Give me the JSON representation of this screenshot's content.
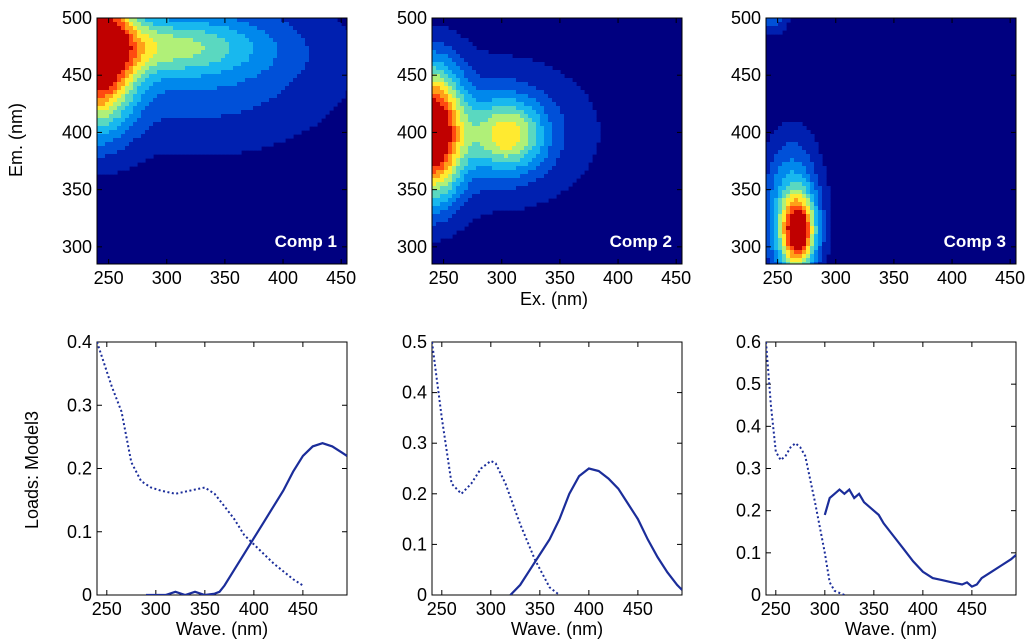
{
  "figure": {
    "shared_ylabel_top": "Em. (nm)",
    "shared_xlabel_top": "Ex. (nm)",
    "shared_ylabel_bottom": "Loads: Model3"
  },
  "colors": {
    "background_fill": "#000080",
    "line": "#1b2d9a",
    "colormap": [
      "#000080",
      "#0020b0",
      "#0050d8",
      "#0088ec",
      "#18b8ee",
      "#5ad8c0",
      "#b0f078",
      "#ffea30",
      "#ffa018",
      "#ff4a10",
      "#c00000"
    ]
  },
  "chart_data": [
    {
      "type": "heatmap",
      "subtype": "contour",
      "label": "Comp 1",
      "xlim": [
        240,
        455
      ],
      "ylim": [
        285,
        500
      ],
      "xticks": [
        250,
        300,
        350,
        400,
        450
      ],
      "yticks": [
        300,
        350,
        400,
        450,
        500
      ],
      "ylabel": "Em. (nm)",
      "peaks": [
        {
          "x": 240,
          "y": 470,
          "sx": 22,
          "sy": 45,
          "amp": 1.0
        },
        {
          "x": 300,
          "y": 475,
          "sx": 55,
          "sy": 18,
          "amp": 0.35
        },
        {
          "x": 330,
          "y": 460,
          "sx": 90,
          "sy": 55,
          "amp": 0.26
        }
      ]
    },
    {
      "type": "heatmap",
      "subtype": "contour",
      "label": "Comp 2",
      "xlim": [
        240,
        455
      ],
      "ylim": [
        285,
        500
      ],
      "xticks": [
        250,
        300,
        350,
        400,
        450
      ],
      "yticks": [
        300,
        350,
        400,
        450,
        500
      ],
      "xlabel": "Ex. (nm)",
      "peaks": [
        {
          "x": 240,
          "y": 400,
          "sx": 18,
          "sy": 40,
          "amp": 1.0
        },
        {
          "x": 305,
          "y": 398,
          "sx": 22,
          "sy": 22,
          "amp": 0.5
        },
        {
          "x": 290,
          "y": 400,
          "sx": 70,
          "sy": 50,
          "amp": 0.22
        }
      ]
    },
    {
      "type": "heatmap",
      "subtype": "contour",
      "label": "Comp 3",
      "xlim": [
        240,
        455
      ],
      "ylim": [
        285,
        500
      ],
      "xticks": [
        250,
        300,
        350,
        400,
        450
      ],
      "yticks": [
        300,
        350,
        400,
        450,
        500
      ],
      "peaks": [
        {
          "x": 268,
          "y": 312,
          "sx": 10,
          "sy": 22,
          "amp": 0.75
        },
        {
          "x": 262,
          "y": 330,
          "sx": 18,
          "sy": 45,
          "amp": 0.45
        },
        {
          "x": 245,
          "y": 500,
          "sx": 10,
          "sy": 10,
          "amp": 0.25
        }
      ]
    },
    {
      "type": "line",
      "xlabel": "Wave. (nm)",
      "ylabel": "Loads: Model3",
      "xlim": [
        240,
        495
      ],
      "ylim": [
        0,
        0.4
      ],
      "xticks": [
        250,
        300,
        350,
        400,
        450
      ],
      "yticks": [
        0,
        0.1,
        0.2,
        0.3,
        0.4
      ],
      "ytick_labels": [
        "0",
        "0.1",
        "0.2",
        "0.3",
        "0.4"
      ],
      "series": [
        {
          "style": "dotted",
          "x": [
            240,
            255,
            265,
            275,
            285,
            295,
            305,
            320,
            335,
            350,
            360,
            370,
            380,
            390,
            400,
            420,
            440,
            450
          ],
          "values": [
            0.4,
            0.33,
            0.29,
            0.21,
            0.18,
            0.17,
            0.165,
            0.16,
            0.165,
            0.17,
            0.16,
            0.14,
            0.12,
            0.095,
            0.08,
            0.05,
            0.025,
            0.015
          ]
        },
        {
          "style": "solid",
          "x": [
            290,
            310,
            320,
            330,
            340,
            350,
            360,
            365,
            370,
            380,
            390,
            400,
            410,
            420,
            430,
            440,
            450,
            460,
            470,
            480,
            490,
            495
          ],
          "values": [
            0,
            0,
            0.005,
            0,
            0.005,
            0,
            0.002,
            0.005,
            0.015,
            0.04,
            0.065,
            0.09,
            0.115,
            0.14,
            0.165,
            0.195,
            0.22,
            0.235,
            0.24,
            0.235,
            0.225,
            0.22
          ]
        }
      ]
    },
    {
      "type": "line",
      "xlabel": "Wave. (nm)",
      "xlim": [
        240,
        495
      ],
      "ylim": [
        0,
        0.5
      ],
      "xticks": [
        250,
        300,
        350,
        400,
        450
      ],
      "yticks": [
        0,
        0.1,
        0.2,
        0.3,
        0.4,
        0.5
      ],
      "ytick_labels": [
        "0",
        "0.1",
        "0.2",
        "0.3",
        "0.4",
        "0.5"
      ],
      "series": [
        {
          "style": "dotted",
          "x": [
            240,
            250,
            260,
            270,
            280,
            290,
            300,
            305,
            315,
            330,
            345,
            360,
            370
          ],
          "values": [
            0.5,
            0.35,
            0.22,
            0.2,
            0.22,
            0.25,
            0.265,
            0.26,
            0.22,
            0.14,
            0.07,
            0.015,
            0
          ]
        },
        {
          "style": "solid",
          "x": [
            320,
            330,
            340,
            350,
            360,
            370,
            380,
            390,
            400,
            410,
            420,
            430,
            440,
            450,
            460,
            470,
            480,
            490,
            495
          ],
          "values": [
            0,
            0.02,
            0.05,
            0.08,
            0.11,
            0.15,
            0.2,
            0.235,
            0.25,
            0.245,
            0.23,
            0.21,
            0.18,
            0.15,
            0.11,
            0.075,
            0.045,
            0.02,
            0.01
          ]
        }
      ]
    },
    {
      "type": "line",
      "xlabel": "Wave. (nm)",
      "xlim": [
        240,
        495
      ],
      "ylim": [
        0,
        0.6
      ],
      "xticks": [
        250,
        300,
        350,
        400,
        450
      ],
      "yticks": [
        0,
        0.1,
        0.2,
        0.3,
        0.4,
        0.5,
        0.6
      ],
      "ytick_labels": [
        "0",
        "0.1",
        "0.2",
        "0.3",
        "0.4",
        "0.5",
        "0.6"
      ],
      "series": [
        {
          "style": "dotted",
          "x": [
            240,
            245,
            250,
            255,
            260,
            265,
            270,
            275,
            280,
            290,
            300,
            305,
            310,
            315,
            320
          ],
          "values": [
            0.6,
            0.45,
            0.34,
            0.32,
            0.33,
            0.35,
            0.36,
            0.35,
            0.33,
            0.22,
            0.1,
            0.03,
            0.01,
            0.005,
            0
          ]
        },
        {
          "style": "solid",
          "x": [
            300,
            305,
            310,
            315,
            320,
            325,
            330,
            335,
            340,
            345,
            350,
            355,
            360,
            370,
            380,
            390,
            400,
            410,
            420,
            430,
            440,
            445,
            450,
            455,
            460,
            470,
            480,
            490,
            495
          ],
          "values": [
            0.19,
            0.23,
            0.24,
            0.25,
            0.24,
            0.25,
            0.23,
            0.24,
            0.22,
            0.21,
            0.2,
            0.19,
            0.17,
            0.14,
            0.11,
            0.08,
            0.055,
            0.04,
            0.035,
            0.03,
            0.025,
            0.03,
            0.02,
            0.025,
            0.04,
            0.055,
            0.07,
            0.085,
            0.095
          ]
        }
      ]
    }
  ]
}
